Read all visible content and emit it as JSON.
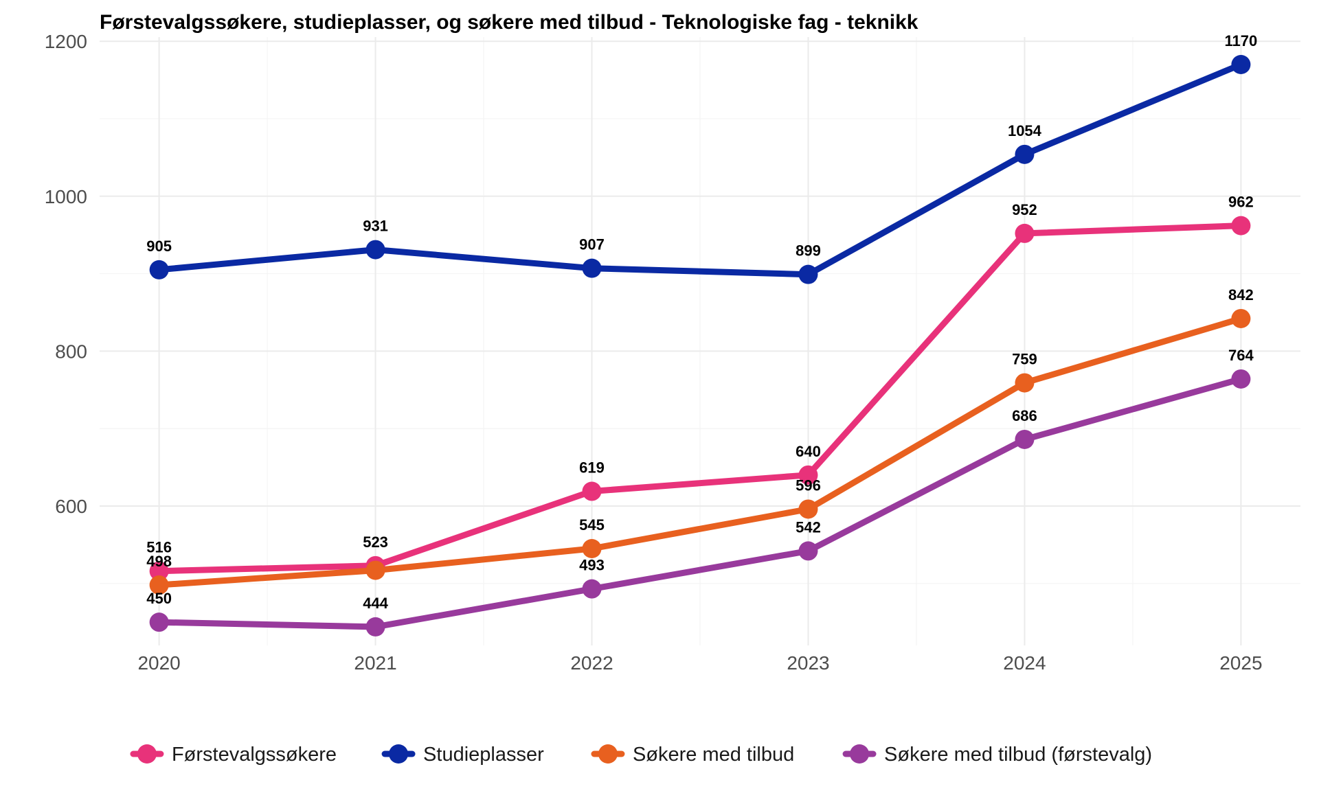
{
  "chart_data": {
    "type": "line",
    "title": "Førstevalgssøkere, studieplasser, og søkere med tilbud - Teknologiske fag - teknikk",
    "xlabel": "",
    "ylabel": "",
    "x": [
      2020,
      2021,
      2022,
      2023,
      2024,
      2025
    ],
    "x_tick_labels": [
      "2020",
      "2021",
      "2022",
      "2023",
      "2024",
      "2025"
    ],
    "ylim": [
      420,
      1200
    ],
    "y_ticks": [
      600,
      800,
      1000,
      1200
    ],
    "y_tick_labels": [
      "600",
      "800",
      "1000",
      "1200"
    ],
    "grid": true,
    "legend_position": "bottom",
    "series": [
      {
        "name": "Førstevalgssøkere",
        "color": "#e8327a",
        "values": [
          516,
          523,
          619,
          640,
          952,
          962
        ]
      },
      {
        "name": "Studieplasser",
        "color": "#0a29a3",
        "values": [
          905,
          931,
          907,
          899,
          1054,
          1170
        ]
      },
      {
        "name": "Søkere med tilbud",
        "color": "#e8601f",
        "values": [
          498,
          517,
          545,
          596,
          759,
          842
        ]
      },
      {
        "name": "Søkere med tilbud (førstevalg)",
        "color": "#983a9c",
        "values": [
          450,
          444,
          493,
          542,
          686,
          764
        ]
      }
    ],
    "data_labels": [
      {
        "series": 1,
        "index": 0,
        "text": "905"
      },
      {
        "series": 1,
        "index": 1,
        "text": "931"
      },
      {
        "series": 1,
        "index": 2,
        "text": "907"
      },
      {
        "series": 1,
        "index": 3,
        "text": "899"
      },
      {
        "series": 1,
        "index": 4,
        "text": "1054"
      },
      {
        "series": 1,
        "index": 5,
        "text": "1170"
      },
      {
        "series": 0,
        "index": 0,
        "text": "516"
      },
      {
        "series": 0,
        "index": 1,
        "text": "523"
      },
      {
        "series": 0,
        "index": 2,
        "text": "619"
      },
      {
        "series": 0,
        "index": 3,
        "text": "640"
      },
      {
        "series": 0,
        "index": 4,
        "text": "952"
      },
      {
        "series": 0,
        "index": 5,
        "text": "962"
      },
      {
        "series": 2,
        "index": 0,
        "text": "498"
      },
      {
        "series": 2,
        "index": 2,
        "text": "545"
      },
      {
        "series": 2,
        "index": 3,
        "text": "596"
      },
      {
        "series": 2,
        "index": 4,
        "text": "759"
      },
      {
        "series": 2,
        "index": 5,
        "text": "842"
      },
      {
        "series": 3,
        "index": 0,
        "text": "450"
      },
      {
        "series": 3,
        "index": 1,
        "text": "444"
      },
      {
        "series": 3,
        "index": 2,
        "text": "493"
      },
      {
        "series": 3,
        "index": 3,
        "text": "542"
      },
      {
        "series": 3,
        "index": 4,
        "text": "686"
      },
      {
        "series": 3,
        "index": 5,
        "text": "764"
      }
    ]
  }
}
